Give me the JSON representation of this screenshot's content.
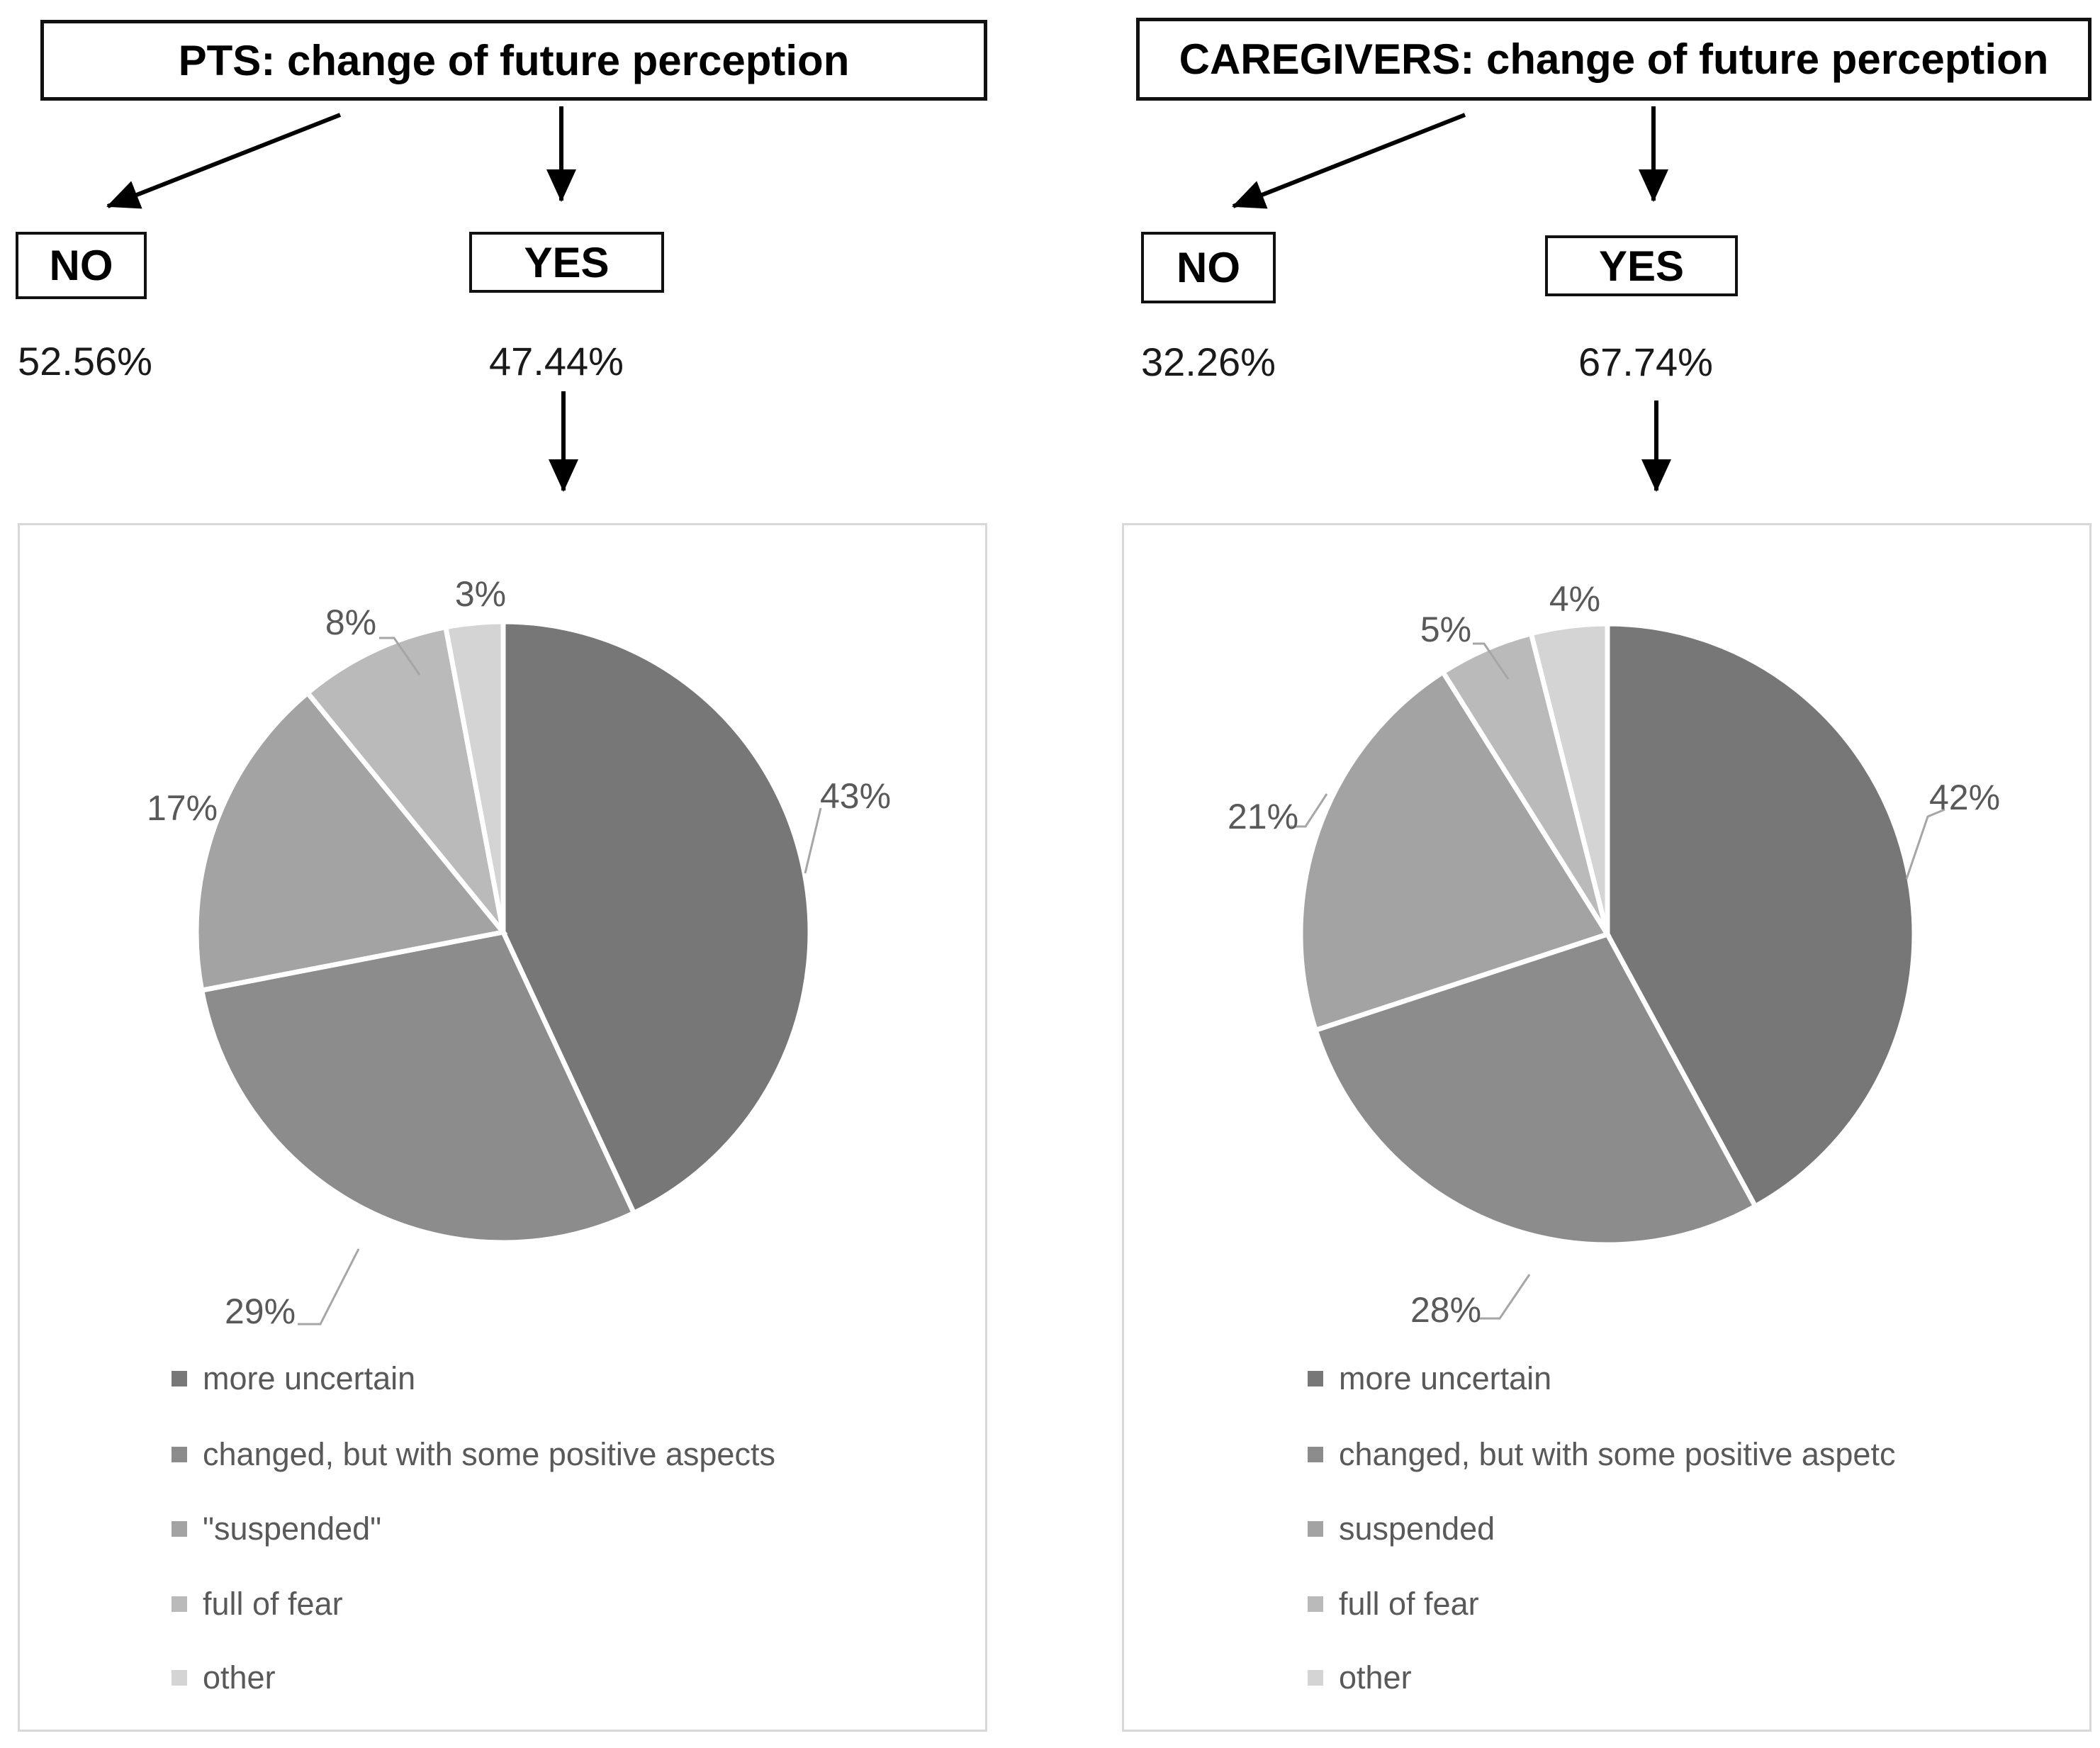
{
  "colors": [
    "#777777",
    "#8C8C8C",
    "#A3A3A3",
    "#BABABA",
    "#D4D4D4"
  ],
  "text_colors": {
    "labels": "#595959",
    "flow": "#000000"
  },
  "left": {
    "title": "PTS: change of future perception",
    "no_label": "NO",
    "yes_label": "YES",
    "no_pct": "52.56%",
    "yes_pct": "47.44%",
    "slice_labels": [
      "43%",
      "29%",
      "17%",
      "8%",
      "3%"
    ],
    "legend": [
      "more uncertain",
      "changed, but with some positive aspects",
      "\"suspended\"",
      "full of fear",
      "other"
    ]
  },
  "right": {
    "title": "CAREGIVERS: change of future perception",
    "no_label": "NO",
    "yes_label": "YES",
    "no_pct": "32.26%",
    "yes_pct": "67.74%",
    "slice_labels": [
      "42%",
      "28%",
      "21%",
      "5%",
      "4%"
    ],
    "legend": [
      "more uncertain",
      "changed, but with some positive aspetc",
      "suspended",
      "full of fear",
      "other"
    ]
  },
  "chart_data": [
    {
      "type": "pie",
      "title": "PTS: change of future perception — YES (47.44%)",
      "categories": [
        "more uncertain",
        "changed, but with some positive aspects",
        "\"suspended\"",
        "full of fear",
        "other"
      ],
      "values": [
        43,
        29,
        17,
        8,
        3
      ],
      "labels": [
        "43%",
        "29%",
        "17%",
        "8%",
        "3%"
      ],
      "legend_position": "bottom-left",
      "start_angle_deg": 0,
      "direction": "clockwise"
    },
    {
      "type": "pie",
      "title": "CAREGIVERS: change of future perception — YES (67.74%)",
      "categories": [
        "more uncertain",
        "changed, but with some positive aspetc",
        "suspended",
        "full of fear",
        "other"
      ],
      "values": [
        42,
        28,
        21,
        5,
        4
      ],
      "labels": [
        "42%",
        "28%",
        "21%",
        "5%",
        "4%"
      ],
      "legend_position": "bottom-left",
      "start_angle_deg": 0,
      "direction": "clockwise"
    }
  ]
}
